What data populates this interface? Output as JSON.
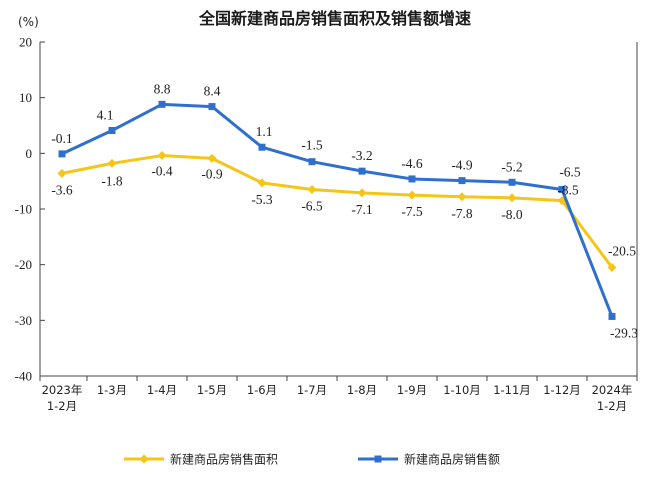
{
  "chart_data": {
    "type": "line",
    "title": "全国新建商品房销售面积及销售额增速",
    "unit_label": "(%)",
    "categories": [
      [
        "2023年",
        "1-2月"
      ],
      [
        "1-3月"
      ],
      [
        "1-4月"
      ],
      [
        "1-5月"
      ],
      [
        "1-6月"
      ],
      [
        "1-7月"
      ],
      [
        "1-8月"
      ],
      [
        "1-9月"
      ],
      [
        "1-10月"
      ],
      [
        "1-11月"
      ],
      [
        "1-12月"
      ],
      [
        "2024年",
        "1-2月"
      ]
    ],
    "ylim": [
      -40,
      20
    ],
    "yticks": [
      "20",
      "10",
      "0",
      "-10",
      "-20",
      "-30",
      "-40"
    ],
    "ytick_values": [
      20,
      10,
      0,
      -10,
      -20,
      -30,
      -40
    ],
    "grid": false,
    "legend_position": "bottom",
    "series": [
      {
        "name": "新建商品房销售面积",
        "color": "#F5C518",
        "marker": "diamond",
        "values": [
          -3.6,
          -1.8,
          -0.4,
          -0.9,
          -5.3,
          -6.5,
          -7.1,
          -7.5,
          -7.8,
          -8.0,
          -8.5,
          -20.5
        ],
        "labels": [
          "-3.6",
          "-1.8",
          "-0.4",
          "-0.9",
          "-5.3",
          "-6.5",
          "-7.1",
          "-7.5",
          "-7.8",
          "-8.0",
          "-8.5",
          "-20.5"
        ]
      },
      {
        "name": "新建商品房销售额",
        "color": "#2F6FCE",
        "marker": "square",
        "values": [
          -0.1,
          4.1,
          8.8,
          8.4,
          1.1,
          -1.5,
          -3.2,
          -4.6,
          -4.9,
          -5.2,
          -6.5,
          -29.3
        ],
        "labels": [
          "-0.1",
          "4.1",
          "8.8",
          "8.4",
          "1.1",
          "-1.5",
          "-3.2",
          "-4.6",
          "-4.9",
          "-5.2",
          "-6.5",
          "-29.3"
        ]
      }
    ]
  }
}
